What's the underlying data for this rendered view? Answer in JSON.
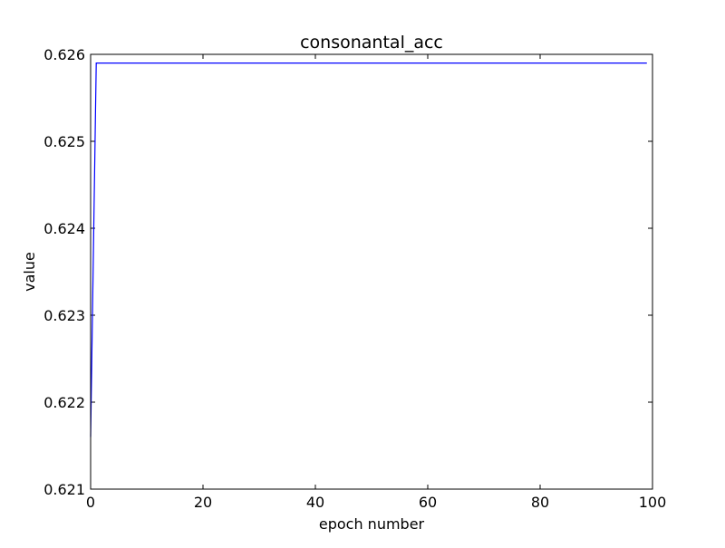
{
  "chart_data": {
    "type": "line",
    "title": "consonantal_acc",
    "xlabel": "epoch number",
    "ylabel": "value",
    "xlim": [
      0,
      100
    ],
    "ylim": [
      0.621,
      0.626
    ],
    "xticks": [
      0,
      20,
      40,
      60,
      80,
      100
    ],
    "xtick_labels": [
      "0",
      "20",
      "40",
      "60",
      "80",
      "100"
    ],
    "yticks": [
      0.621,
      0.622,
      0.623,
      0.624,
      0.625,
      0.626
    ],
    "ytick_labels": [
      "0.621",
      "0.622",
      "0.623",
      "0.624",
      "0.625",
      "0.626"
    ],
    "grid": false,
    "line_color": "#0000ff",
    "series": [
      {
        "x": [
          0,
          1,
          99
        ],
        "values": [
          0.6216,
          0.6259,
          0.6259
        ]
      }
    ]
  }
}
